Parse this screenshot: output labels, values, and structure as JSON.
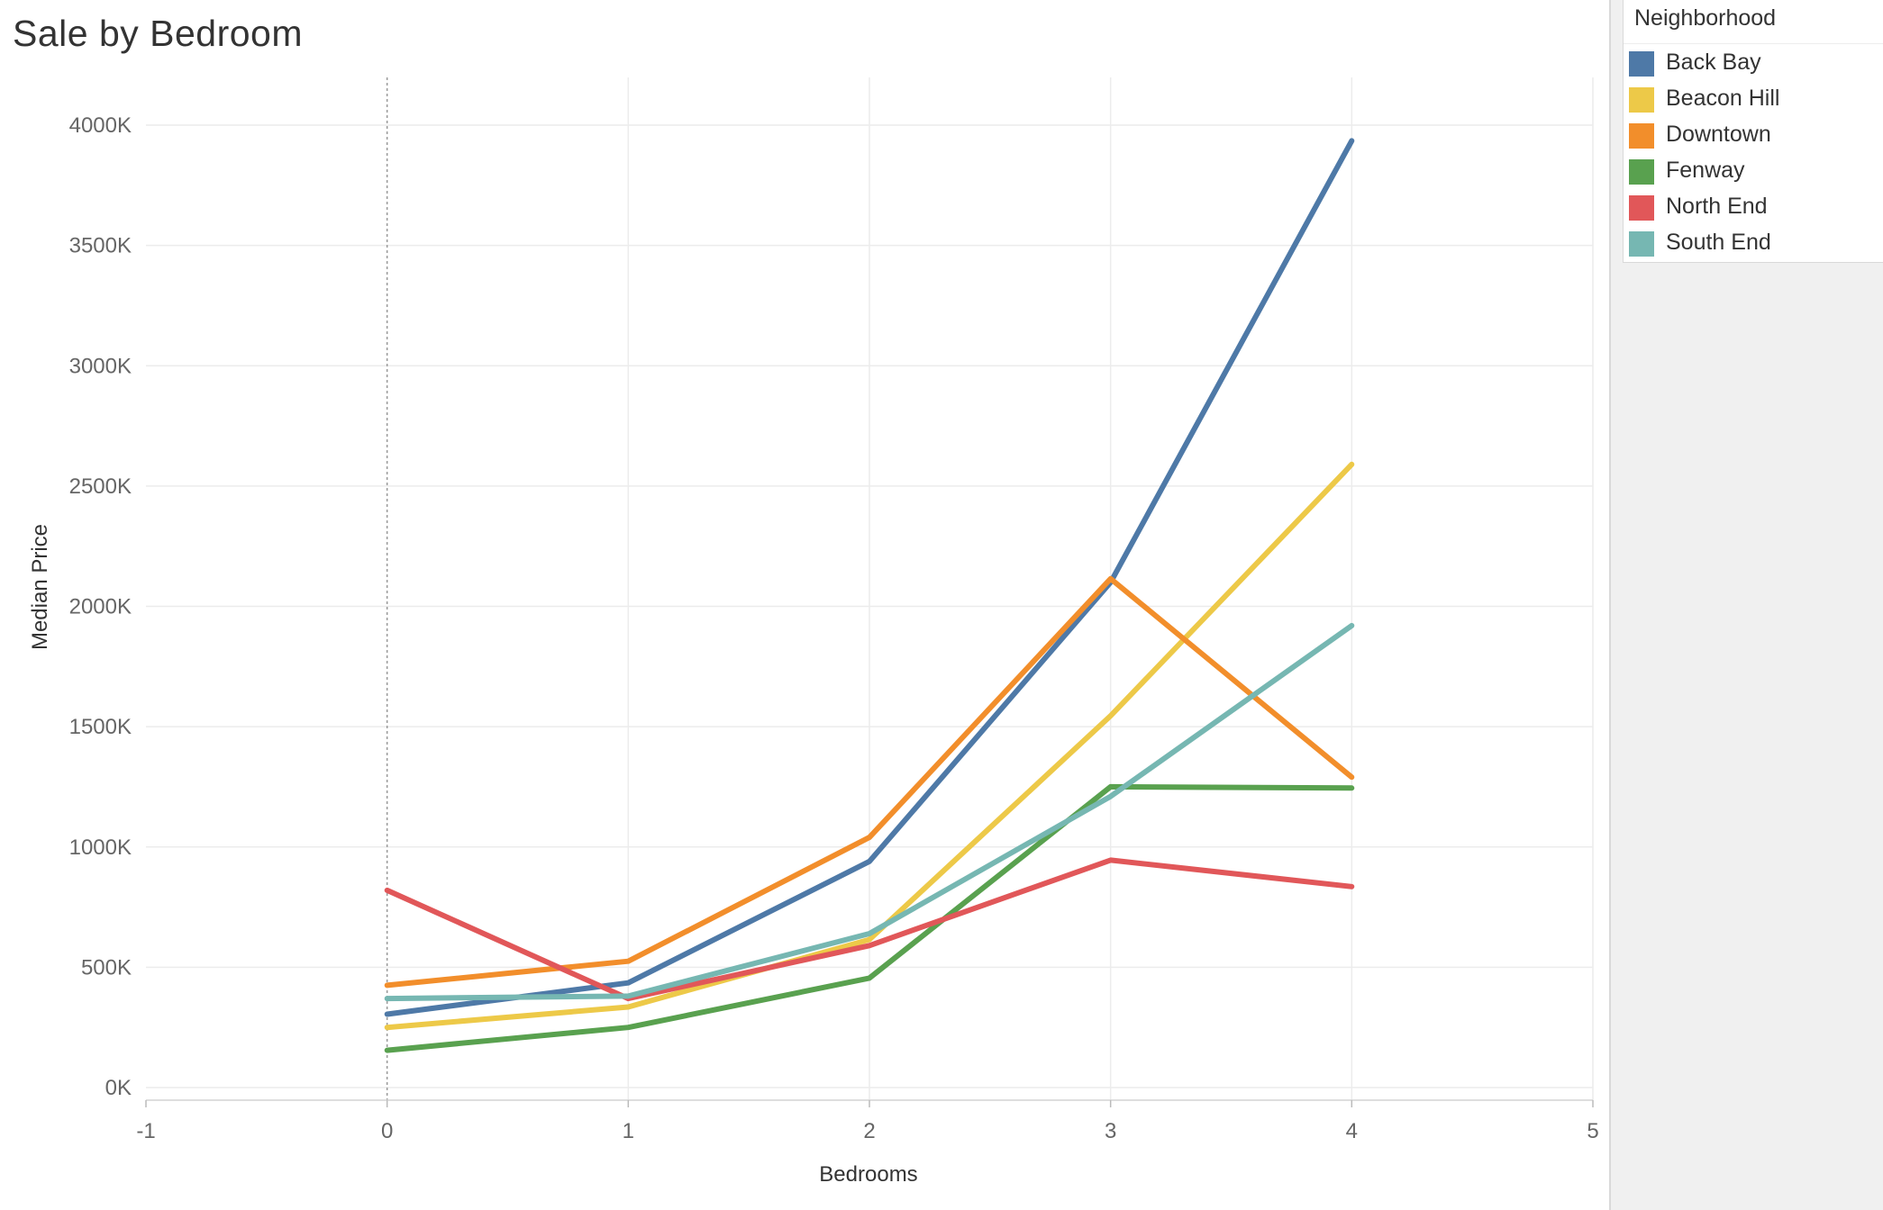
{
  "title": "Sale by Bedroom",
  "legend": {
    "title": "Neighborhood",
    "items": [
      {
        "label": "Back Bay",
        "color": "#4e79a7"
      },
      {
        "label": "Beacon Hill",
        "color": "#edc948"
      },
      {
        "label": "Downtown",
        "color": "#f28e2b"
      },
      {
        "label": "Fenway",
        "color": "#59a14f"
      },
      {
        "label": "North End",
        "color": "#e15759"
      },
      {
        "label": "South End",
        "color": "#76b7b2"
      }
    ]
  },
  "chart_data": {
    "type": "line",
    "title": "Sale by Bedroom",
    "xlabel": "Bedrooms",
    "ylabel": "Median Price",
    "x": [
      0,
      1,
      2,
      3,
      4
    ],
    "xlim": [
      -1,
      5
    ],
    "xticks": [
      -1,
      0,
      1,
      2,
      3,
      4,
      5
    ],
    "ylim": [
      0,
      4000000
    ],
    "yticks": [
      0,
      500000,
      1000000,
      1500000,
      2000000,
      2500000,
      3000000,
      3500000,
      4000000
    ],
    "ytick_labels": [
      "0K",
      "500K",
      "1000K",
      "1500K",
      "2000K",
      "2500K",
      "3000K",
      "3500K",
      "4000K"
    ],
    "grid": true,
    "legend_position": "right",
    "series": [
      {
        "name": "Back Bay",
        "color": "#4e79a7",
        "values": [
          305000,
          435000,
          940000,
          2100000,
          3935000
        ]
      },
      {
        "name": "Beacon Hill",
        "color": "#edc948",
        "values": [
          250000,
          335000,
          615000,
          1545000,
          2590000
        ]
      },
      {
        "name": "Downtown",
        "color": "#f28e2b",
        "values": [
          425000,
          525000,
          1040000,
          2115000,
          1290000
        ]
      },
      {
        "name": "Fenway",
        "color": "#59a14f",
        "values": [
          155000,
          250000,
          455000,
          1250000,
          1245000
        ]
      },
      {
        "name": "North End",
        "color": "#e15759",
        "values": [
          820000,
          370000,
          590000,
          945000,
          835000
        ]
      },
      {
        "name": "South End",
        "color": "#76b7b2",
        "values": [
          370000,
          380000,
          640000,
          1210000,
          1920000
        ]
      }
    ]
  }
}
